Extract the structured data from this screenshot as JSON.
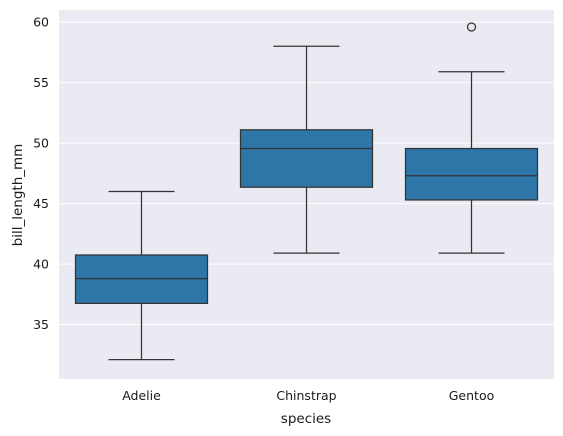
{
  "chart_data": {
    "type": "box",
    "title": "",
    "xlabel": "species",
    "ylabel": "bill_length_mm",
    "categories": [
      "Adelie",
      "Chinstrap",
      "Gentoo"
    ],
    "boxes": [
      {
        "category": "Adelie",
        "whisker_low": 32.1,
        "q1": 36.75,
        "median": 38.8,
        "q3": 40.75,
        "whisker_high": 46.0,
        "outliers": []
      },
      {
        "category": "Chinstrap",
        "whisker_low": 40.9,
        "q1": 46.35,
        "median": 49.55,
        "q3": 51.1,
        "whisker_high": 58.0,
        "outliers": []
      },
      {
        "category": "Gentoo",
        "whisker_low": 40.9,
        "q1": 45.3,
        "median": 47.3,
        "q3": 49.55,
        "whisker_high": 55.9,
        "outliers": [
          59.6
        ]
      }
    ],
    "y_ticks": [
      35,
      40,
      45,
      50,
      55,
      60
    ],
    "ylim": [
      30.5,
      61.0
    ],
    "grid": true,
    "legend": "none",
    "colors": {
      "box_fill": "#2e75a8",
      "line": "#333333",
      "background": "#eaeaf2",
      "grid": "#ffffff"
    }
  }
}
